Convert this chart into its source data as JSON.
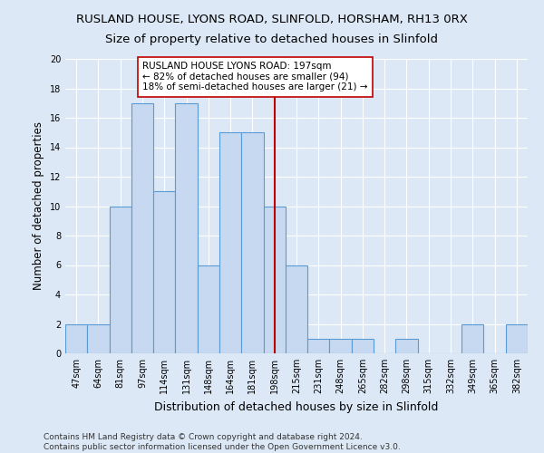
{
  "title": "RUSLAND HOUSE, LYONS ROAD, SLINFOLD, HORSHAM, RH13 0RX",
  "subtitle": "Size of property relative to detached houses in Slinfold",
  "xlabel": "Distribution of detached houses by size in Slinfold",
  "ylabel": "Number of detached properties",
  "categories": [
    "47sqm",
    "64sqm",
    "81sqm",
    "97sqm",
    "114sqm",
    "131sqm",
    "148sqm",
    "164sqm",
    "181sqm",
    "198sqm",
    "215sqm",
    "231sqm",
    "248sqm",
    "265sqm",
    "282sqm",
    "298sqm",
    "315sqm",
    "332sqm",
    "349sqm",
    "365sqm",
    "382sqm"
  ],
  "values": [
    2,
    2,
    10,
    17,
    11,
    17,
    6,
    15,
    15,
    10,
    6,
    1,
    1,
    1,
    0,
    1,
    0,
    0,
    2,
    0,
    2
  ],
  "bar_color": "#c6d9f0",
  "bar_edge_color": "#5b9bd5",
  "vline_color": "#c00000",
  "vline_index": 9,
  "annotation_line1": "RUSLAND HOUSE LYONS ROAD: 197sqm",
  "annotation_line2": "← 82% of detached houses are smaller (94)",
  "annotation_line3": "18% of semi-detached houses are larger (21) →",
  "annotation_box_color": "#c00000",
  "ylim": [
    0,
    20
  ],
  "yticks": [
    0,
    2,
    4,
    6,
    8,
    10,
    12,
    14,
    16,
    18,
    20
  ],
  "footer_line1": "Contains HM Land Registry data © Crown copyright and database right 2024.",
  "footer_line2": "Contains public sector information licensed under the Open Government Licence v3.0.",
  "bg_color": "#dce8f5",
  "plot_bg_color": "#dce8f5",
  "grid_color": "white",
  "title_fontsize": 9.5,
  "subtitle_fontsize": 9.5,
  "xlabel_fontsize": 9,
  "ylabel_fontsize": 8.5,
  "tick_fontsize": 7,
  "annotation_fontsize": 7.5,
  "footer_fontsize": 6.5
}
